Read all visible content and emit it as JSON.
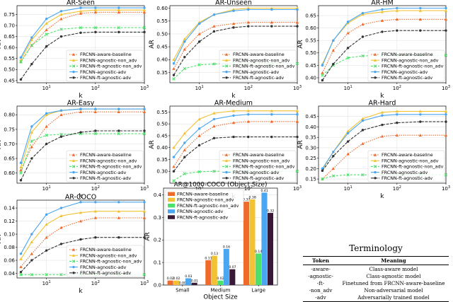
{
  "colors": {
    "FRCNN-aware-baseline": "#f06a2a",
    "FRCNN-agnostic-non_adv": "#f2c232",
    "FRCNN-ft-agnostic-non_adv": "#4de06a",
    "FRCNN-agnostic-adv": "#4aa6f0",
    "FRCNN-ft-agnostic-adv": "#333333",
    "bar_ft_adv": "#3a1838"
  },
  "chart_data": [
    {
      "id": "ar-seen",
      "type": "line",
      "title": "AR-Seen",
      "xlabel": "k",
      "ylabel": "AR",
      "xscale": "log",
      "xlim": [
        2.5,
        1000
      ],
      "ylim": [
        0.44,
        0.79
      ],
      "yticks": [
        "0.45",
        "0.50",
        "0.55",
        "0.60",
        "0.65",
        "0.70",
        "0.75"
      ],
      "ytick_values": [
        0.45,
        0.5,
        0.55,
        0.6,
        0.65,
        0.7,
        0.75
      ],
      "xticks": [
        "10^1",
        "10^2",
        "10^3"
      ],
      "xtick_values": [
        10,
        100,
        1000
      ],
      "x": [
        3,
        5,
        10,
        20,
        50,
        100,
        300,
        1000
      ],
      "legend_loc": "lower-right",
      "series": [
        {
          "name": "FRCNN-aware-baseline",
          "values": [
            0.535,
            0.61,
            0.68,
            0.73,
            0.755,
            0.76,
            0.76,
            0.76
          ]
        },
        {
          "name": "FRCNN-agnostic-non_adv",
          "values": [
            0.545,
            0.635,
            0.71,
            0.75,
            0.765,
            0.77,
            0.77,
            0.77
          ]
        },
        {
          "name": "FRCNN-ft-agnostic-non_adv",
          "values": [
            0.535,
            0.61,
            0.66,
            0.683,
            0.69,
            0.69,
            0.69,
            0.69
          ]
        },
        {
          "name": "FRCNN-agnostic-adv",
          "values": [
            0.555,
            0.645,
            0.73,
            0.765,
            0.78,
            0.78,
            0.78,
            0.78
          ]
        },
        {
          "name": "FRCNN-ft-agnostic-adv",
          "values": [
            0.455,
            0.525,
            0.605,
            0.65,
            0.667,
            0.67,
            0.67,
            0.67
          ]
        }
      ]
    },
    {
      "id": "ar-unseen",
      "type": "line",
      "title": "AR-Unseen",
      "xlabel": "k",
      "ylabel": "AR",
      "xscale": "log",
      "xlim": [
        2.5,
        1000
      ],
      "ylim": [
        0.31,
        0.61
      ],
      "yticks": [
        "0.35",
        "0.40",
        "0.45",
        "0.50",
        "0.55",
        "0.60"
      ],
      "ytick_values": [
        0.35,
        0.4,
        0.45,
        0.5,
        0.55,
        0.6
      ],
      "xticks": [
        "10^1",
        "10^2",
        "10^3"
      ],
      "xtick_values": [
        10,
        100,
        1000
      ],
      "x": [
        3,
        5,
        10,
        20,
        50,
        100,
        300,
        1000
      ],
      "legend_loc": "lower-right",
      "series": [
        {
          "name": "FRCNN-aware-baseline",
          "values": [
            0.365,
            0.44,
            0.5,
            0.53,
            0.54,
            0.545,
            0.545,
            0.545
          ]
        },
        {
          "name": "FRCNN-agnostic-non_adv",
          "values": [
            0.4,
            0.48,
            0.545,
            0.575,
            0.595,
            0.6,
            0.6,
            0.6
          ]
        },
        {
          "name": "FRCNN-ft-agnostic-non_adv",
          "values": [
            0.325,
            0.365,
            0.38,
            0.383,
            0.385,
            0.385,
            0.385,
            0.385
          ]
        },
        {
          "name": "FRCNN-agnostic-adv",
          "values": [
            0.385,
            0.47,
            0.54,
            0.575,
            0.59,
            0.595,
            0.595,
            0.595
          ]
        },
        {
          "name": "FRCNN-ft-agnostic-adv",
          "values": [
            0.34,
            0.41,
            0.47,
            0.51,
            0.525,
            0.53,
            0.53,
            0.53
          ]
        }
      ]
    },
    {
      "id": "ar-hm",
      "type": "line",
      "title": "AR-HM",
      "xlabel": "k",
      "ylabel": "AR",
      "xscale": "log",
      "xlim": [
        2.5,
        1000
      ],
      "ylim": [
        0.38,
        0.69
      ],
      "yticks": [
        "0.40",
        "0.45",
        "0.50",
        "0.55",
        "0.60",
        "0.65"
      ],
      "ytick_values": [
        0.4,
        0.45,
        0.5,
        0.55,
        0.6,
        0.65
      ],
      "xticks": [
        "10^1",
        "10^2",
        "10^3"
      ],
      "xtick_values": [
        10,
        100,
        1000
      ],
      "x": [
        3,
        5,
        10,
        20,
        50,
        100,
        300,
        1000
      ],
      "legend_loc": "lower-right",
      "series": [
        {
          "name": "FRCNN-aware-baseline",
          "values": [
            0.42,
            0.51,
            0.58,
            0.615,
            0.63,
            0.635,
            0.635,
            0.635
          ]
        },
        {
          "name": "FRCNN-agnostic-non_adv",
          "values": [
            0.455,
            0.55,
            0.62,
            0.655,
            0.665,
            0.67,
            0.67,
            0.67
          ]
        },
        {
          "name": "FRCNN-ft-agnostic-non_adv",
          "values": [
            0.41,
            0.45,
            0.48,
            0.488,
            0.49,
            0.49,
            0.49,
            0.49
          ]
        },
        {
          "name": "FRCNN-agnostic-adv",
          "values": [
            0.45,
            0.55,
            0.625,
            0.66,
            0.675,
            0.68,
            0.68,
            0.68
          ]
        },
        {
          "name": "FRCNN-ft-agnostic-adv",
          "values": [
            0.39,
            0.455,
            0.52,
            0.565,
            0.585,
            0.59,
            0.59,
            0.59
          ]
        }
      ]
    },
    {
      "id": "ar-easy",
      "type": "line",
      "title": "AR-Easy",
      "xlabel": "k",
      "ylabel": "AR",
      "xscale": "log",
      "xlim": [
        2.5,
        1000
      ],
      "ylim": [
        0.565,
        0.83
      ],
      "yticks": [
        "0.60",
        "0.65",
        "0.70",
        "0.75",
        "0.80"
      ],
      "ytick_values": [
        0.6,
        0.65,
        0.7,
        0.75,
        0.8
      ],
      "xticks": [
        "10^1",
        "10^2",
        "10^3"
      ],
      "xtick_values": [
        10,
        100,
        1000
      ],
      "x": [
        3,
        5,
        10,
        20,
        50,
        100,
        300,
        1000
      ],
      "legend_loc": "lower-right",
      "series": [
        {
          "name": "FRCNN-aware-baseline",
          "values": [
            0.61,
            0.69,
            0.76,
            0.8,
            0.81,
            0.81,
            0.81,
            0.81
          ]
        },
        {
          "name": "FRCNN-agnostic-non_adv",
          "values": [
            0.62,
            0.74,
            0.8,
            0.815,
            0.82,
            0.82,
            0.82,
            0.82
          ]
        },
        {
          "name": "FRCNN-ft-agnostic-non_adv",
          "values": [
            0.6,
            0.71,
            0.73,
            0.733,
            0.735,
            0.735,
            0.735,
            0.735
          ]
        },
        {
          "name": "FRCNN-agnostic-adv",
          "values": [
            0.635,
            0.76,
            0.805,
            0.815,
            0.82,
            0.82,
            0.82,
            0.82
          ]
        },
        {
          "name": "FRCNN-ft-agnostic-adv",
          "values": [
            0.575,
            0.65,
            0.7,
            0.725,
            0.74,
            0.745,
            0.745,
            0.745
          ]
        }
      ]
    },
    {
      "id": "ar-medium",
      "type": "line",
      "title": "AR-Medium",
      "xlabel": "k",
      "ylabel": "AR",
      "xscale": "log",
      "xlim": [
        2.5,
        1000
      ],
      "ylim": [
        0.25,
        0.575
      ],
      "yticks": [
        "0.30",
        "0.35",
        "0.40",
        "0.45",
        "0.50",
        "0.55"
      ],
      "ytick_values": [
        0.3,
        0.35,
        0.4,
        0.45,
        0.5,
        0.55
      ],
      "xticks": [
        "10^1",
        "10^2",
        "10^3"
      ],
      "xtick_values": [
        10,
        100,
        1000
      ],
      "x": [
        3,
        5,
        10,
        20,
        50,
        100,
        300,
        1000
      ],
      "legend_loc": "lower-right",
      "series": [
        {
          "name": "FRCNN-aware-baseline",
          "values": [
            0.32,
            0.39,
            0.45,
            0.49,
            0.505,
            0.51,
            0.51,
            0.51
          ]
        },
        {
          "name": "FRCNN-agnostic-non_adv",
          "values": [
            0.4,
            0.46,
            0.52,
            0.545,
            0.555,
            0.555,
            0.555,
            0.555
          ]
        },
        {
          "name": "FRCNN-ft-agnostic-non_adv",
          "values": [
            0.26,
            0.29,
            0.298,
            0.3,
            0.3,
            0.3,
            0.3,
            0.3
          ]
        },
        {
          "name": "FRCNN-agnostic-adv",
          "values": [
            0.36,
            0.42,
            0.48,
            0.52,
            0.535,
            0.54,
            0.54,
            0.54
          ]
        },
        {
          "name": "FRCNN-ft-agnostic-adv",
          "values": [
            0.3,
            0.36,
            0.41,
            0.44,
            0.445,
            0.445,
            0.445,
            0.445
          ]
        }
      ]
    },
    {
      "id": "ar-hard",
      "type": "line",
      "title": "AR-Hard",
      "xlabel": "k",
      "ylabel": "AR",
      "xscale": "log",
      "xlim": [
        2.5,
        1000
      ],
      "ylim": [
        0.13,
        0.5
      ],
      "yticks": [
        "0.15",
        "0.20",
        "0.25",
        "0.30",
        "0.35",
        "0.40",
        "0.45"
      ],
      "ytick_values": [
        0.15,
        0.2,
        0.25,
        0.3,
        0.35,
        0.4,
        0.45
      ],
      "xticks": [
        "10^1",
        "10^2",
        "10^3"
      ],
      "xtick_values": [
        10,
        100,
        1000
      ],
      "x": [
        3,
        5,
        10,
        20,
        50,
        100,
        300,
        1000
      ],
      "legend_loc": "lower-right",
      "series": [
        {
          "name": "FRCNN-aware-baseline",
          "values": [
            0.15,
            0.2,
            0.27,
            0.32,
            0.355,
            0.36,
            0.36,
            0.36
          ]
        },
        {
          "name": "FRCNN-agnostic-non_adv",
          "values": [
            0.195,
            0.28,
            0.38,
            0.44,
            0.47,
            0.475,
            0.475,
            0.475
          ]
        },
        {
          "name": "FRCNN-ft-agnostic-non_adv",
          "values": [
            0.15,
            0.165,
            0.17,
            0.17,
            0.17,
            0.17,
            0.17,
            0.17
          ]
        },
        {
          "name": "FRCNN-agnostic-adv",
          "values": [
            0.2,
            0.28,
            0.37,
            0.43,
            0.455,
            0.46,
            0.46,
            0.46
          ]
        },
        {
          "name": "FRCNN-ft-agnostic-adv",
          "values": [
            0.19,
            0.26,
            0.33,
            0.385,
            0.41,
            0.42,
            0.425,
            0.425
          ]
        }
      ]
    },
    {
      "id": "ar-coco",
      "type": "line",
      "title": "AR-COCO",
      "xlabel": "k",
      "ylabel": "AR",
      "xscale": "log",
      "xlim": [
        2.5,
        1000
      ],
      "ylim": [
        0.033,
        0.152
      ],
      "yticks": [
        "0.04",
        "0.06",
        "0.08",
        "0.10",
        "0.12",
        "0.14"
      ],
      "ytick_values": [
        0.04,
        0.06,
        0.08,
        0.1,
        0.12,
        0.14
      ],
      "xticks": [
        "10^1",
        "10^2",
        "10^3"
      ],
      "xtick_values": [
        10,
        100,
        1000
      ],
      "x": [
        3,
        5,
        10,
        20,
        50,
        100,
        300,
        1000
      ],
      "legend_loc": "lower-right",
      "series": [
        {
          "name": "FRCNN-aware-baseline",
          "values": [
            0.05,
            0.07,
            0.095,
            0.11,
            0.12,
            0.125,
            0.125,
            0.125
          ]
        },
        {
          "name": "FRCNN-agnostic-non_adv",
          "values": [
            0.062,
            0.088,
            0.115,
            0.128,
            0.133,
            0.135,
            0.135,
            0.135
          ]
        },
        {
          "name": "FRCNN-ft-agnostic-non_adv",
          "values": [
            0.038,
            0.038,
            0.038,
            0.038,
            0.038,
            0.038,
            0.038,
            0.038
          ]
        },
        {
          "name": "FRCNN-agnostic-adv",
          "values": [
            0.07,
            0.1,
            0.13,
            0.14,
            0.149,
            0.149,
            0.149,
            0.149
          ]
        },
        {
          "name": "FRCNN-ft-agnostic-adv",
          "values": [
            0.042,
            0.06,
            0.075,
            0.085,
            0.092,
            0.095,
            0.095,
            0.095
          ]
        }
      ]
    },
    {
      "id": "ar1000-coco-size",
      "type": "bar",
      "title": "AR@1000-COCO (Object Size)",
      "xlabel": "Object Size",
      "ylabel": "AR",
      "ylim": [
        0,
        0.43
      ],
      "yticks": [
        "0.0",
        "0.1",
        "0.2",
        "0.3",
        "0.4"
      ],
      "ytick_values": [
        0.0,
        0.1,
        0.2,
        0.3,
        0.4
      ],
      "categories": [
        "Small",
        "Medium",
        "Large"
      ],
      "legend_loc": "upper-left",
      "series": [
        {
          "name": "FRCNN-aware-baseline",
          "values": [
            0.02,
            0.11,
            0.37
          ],
          "labels": [
            "0.02",
            "0.11",
            "0.37"
          ]
        },
        {
          "name": "FRCNN-agnostic-non_adv",
          "values": [
            0.02,
            0.13,
            0.38
          ],
          "labels": [
            "0.02",
            "0.13",
            "0.38"
          ]
        },
        {
          "name": "FRCNN-ft-agnostic-non_adv",
          "values": [
            0.0,
            0.02,
            0.14
          ],
          "labels": [
            "0.00",
            "0.02",
            "0.14"
          ]
        },
        {
          "name": "FRCNN-agnostic-adv",
          "values": [
            0.03,
            0.16,
            0.41
          ],
          "labels": [
            "0.03",
            "0.16",
            "0.41"
          ]
        },
        {
          "name": "FRCNN-ft-agnostic-adv",
          "values": [
            0.01,
            0.07,
            0.32
          ],
          "labels": [
            "0.01",
            "0.07",
            "0.32"
          ]
        }
      ]
    }
  ],
  "terminology": {
    "title": "Terminology",
    "headers": {
      "token": "Token",
      "meaning": "Meaning"
    },
    "rows": [
      {
        "token": "-aware-",
        "meaning": "Class-aware model"
      },
      {
        "token": "-agnostic-",
        "meaning": "Class-agnostic model"
      },
      {
        "token": "-ft-",
        "meaning": "Finetuned from FRCNN-aware-baseline"
      },
      {
        "token": "-non_adv",
        "meaning": "Non-adversarial model"
      },
      {
        "token": "-adv",
        "meaning": "Adversarially trained model"
      }
    ]
  }
}
